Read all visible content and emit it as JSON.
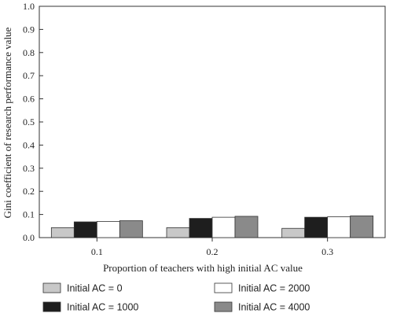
{
  "chart_data": {
    "type": "bar",
    "title": "",
    "xlabel": "Proportion of teachers with high initial AC value",
    "ylabel": "Gini coefficient of research performance value",
    "categories": [
      "0.1",
      "0.2",
      "0.3"
    ],
    "ylim": [
      0,
      1.0
    ],
    "yticks": [
      "0.0",
      "0.1",
      "0.2",
      "0.3",
      "0.4",
      "0.5",
      "0.6",
      "0.7",
      "0.8",
      "0.9",
      "1.0"
    ],
    "grid": false,
    "legend_position": "bottom",
    "series": [
      {
        "name": "Initial AC = 0",
        "color": "#c8c8c8",
        "values": [
          0.043,
          0.043,
          0.04
        ]
      },
      {
        "name": "Initial AC = 1000",
        "color": "#1e1e1e",
        "values": [
          0.068,
          0.083,
          0.088
        ]
      },
      {
        "name": "Initial AC = 2000",
        "color": "#ffffff",
        "values": [
          0.07,
          0.088,
          0.09
        ]
      },
      {
        "name": "Initial AC = 4000",
        "color": "#8a8a8a",
        "values": [
          0.073,
          0.092,
          0.094
        ]
      }
    ]
  }
}
